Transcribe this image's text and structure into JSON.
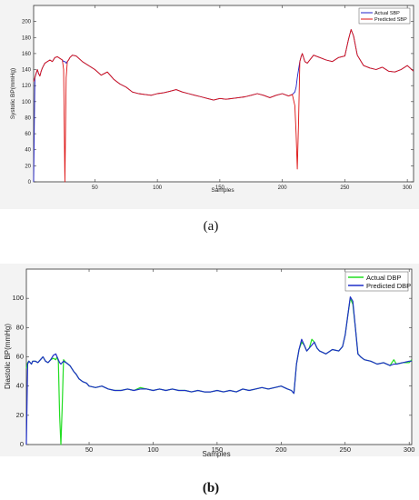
{
  "chart_data": [
    {
      "type": "line",
      "caption": "(a)",
      "xlabel": "Samples",
      "ylabel": "Systolic BP(mmHg)",
      "xlim": [
        1,
        305
      ],
      "ylim": [
        0,
        220
      ],
      "xticks": [
        50,
        100,
        150,
        200,
        250,
        300
      ],
      "yticks": [
        0,
        20,
        40,
        60,
        80,
        100,
        120,
        140,
        160,
        180,
        200
      ],
      "legend_position": "top-right",
      "grid": false,
      "series": [
        {
          "name": "Actual SBP",
          "color": "#2020c8",
          "x": [
            1,
            2,
            3,
            4,
            5,
            6,
            7,
            8,
            9,
            10,
            12,
            14,
            16,
            18,
            20,
            22,
            24,
            25,
            26,
            27,
            28,
            29,
            30,
            32,
            35,
            40,
            45,
            50,
            55,
            60,
            65,
            70,
            75,
            80,
            85,
            90,
            95,
            100,
            105,
            110,
            115,
            120,
            125,
            130,
            135,
            140,
            145,
            150,
            155,
            160,
            165,
            170,
            175,
            180,
            185,
            190,
            195,
            200,
            205,
            208,
            210,
            211,
            212,
            213,
            214,
            215,
            216,
            218,
            220,
            225,
            230,
            235,
            240,
            245,
            250,
            253,
            255,
            257,
            260,
            265,
            270,
            275,
            280,
            285,
            290,
            295,
            300,
            305
          ],
          "y": [
            0,
            130,
            135,
            140,
            135,
            132,
            138,
            142,
            145,
            148,
            150,
            152,
            150,
            155,
            156,
            154,
            152,
            150,
            150,
            148,
            150,
            152,
            155,
            158,
            157,
            150,
            145,
            140,
            133,
            137,
            128,
            122,
            118,
            112,
            110,
            109,
            108,
            110,
            111,
            113,
            115,
            112,
            110,
            108,
            106,
            104,
            102,
            104,
            103,
            104,
            105,
            106,
            108,
            110,
            108,
            105,
            108,
            110,
            107,
            109,
            112,
            118,
            130,
            140,
            150,
            156,
            160,
            150,
            148,
            158,
            155,
            152,
            150,
            155,
            157,
            178,
            190,
            182,
            158,
            145,
            142,
            140,
            143,
            138,
            137,
            140,
            145,
            138
          ]
        },
        {
          "name": "Predicted SBP",
          "color": "#dd1111",
          "x": [
            1,
            2,
            3,
            4,
            5,
            6,
            7,
            8,
            9,
            10,
            12,
            14,
            16,
            18,
            20,
            22,
            24,
            25,
            26,
            27,
            28,
            29,
            30,
            32,
            35,
            40,
            45,
            50,
            55,
            60,
            65,
            70,
            75,
            80,
            85,
            90,
            95,
            100,
            105,
            110,
            115,
            120,
            125,
            130,
            135,
            140,
            145,
            150,
            155,
            160,
            165,
            170,
            175,
            180,
            185,
            190,
            195,
            200,
            205,
            208,
            210,
            211,
            212,
            213,
            214,
            215,
            216,
            218,
            220,
            225,
            230,
            235,
            240,
            245,
            250,
            253,
            255,
            257,
            260,
            265,
            270,
            275,
            280,
            285,
            290,
            295,
            300,
            305
          ],
          "y": [
            125,
            130,
            136,
            140,
            135,
            132,
            138,
            142,
            145,
            148,
            150,
            152,
            150,
            155,
            156,
            154,
            152,
            140,
            0,
            130,
            150,
            152,
            155,
            158,
            157,
            150,
            145,
            140,
            133,
            137,
            128,
            122,
            118,
            112,
            110,
            109,
            108,
            110,
            111,
            113,
            115,
            112,
            110,
            108,
            106,
            104,
            102,
            104,
            103,
            104,
            105,
            106,
            108,
            110,
            108,
            105,
            108,
            110,
            107,
            109,
            95,
            60,
            16,
            75,
            150,
            156,
            160,
            150,
            148,
            158,
            155,
            152,
            150,
            155,
            157,
            178,
            190,
            182,
            158,
            145,
            142,
            140,
            143,
            138,
            137,
            140,
            145,
            138
          ]
        }
      ]
    },
    {
      "type": "line",
      "caption": "(b)",
      "xlabel": "Samples",
      "ylabel": "Diastolic BP(mmHg)",
      "xlim": [
        1,
        302
      ],
      "ylim": [
        0,
        120
      ],
      "xticks": [
        50,
        100,
        150,
        200,
        250,
        300
      ],
      "yticks": [
        0,
        20,
        40,
        60,
        80,
        100
      ],
      "legend_position": "top-right",
      "grid": false,
      "series": [
        {
          "name": "Actual DBP",
          "color": "#22dd22",
          "x": [
            1,
            2,
            3,
            4,
            5,
            6,
            8,
            10,
            12,
            14,
            16,
            18,
            20,
            22,
            24,
            25,
            26,
            27,
            28,
            29,
            30,
            32,
            35,
            38,
            40,
            42,
            45,
            48,
            50,
            55,
            60,
            65,
            70,
            75,
            80,
            85,
            90,
            95,
            100,
            105,
            110,
            115,
            120,
            125,
            130,
            135,
            140,
            145,
            150,
            155,
            160,
            165,
            170,
            175,
            180,
            185,
            190,
            195,
            200,
            205,
            208,
            210,
            212,
            214,
            216,
            218,
            220,
            222,
            224,
            226,
            228,
            230,
            235,
            240,
            245,
            248,
            250,
            252,
            254,
            256,
            258,
            260,
            262,
            265,
            270,
            275,
            280,
            285,
            288,
            290,
            295,
            300,
            302
          ],
          "y": [
            52,
            56,
            57,
            56,
            55,
            57,
            57,
            56,
            58,
            60,
            57,
            56,
            58,
            59,
            58,
            60,
            57,
            20,
            0,
            25,
            58,
            56,
            54,
            50,
            48,
            45,
            43,
            42,
            40,
            39,
            40,
            38,
            37,
            37,
            38,
            37,
            39,
            38,
            37,
            38,
            37,
            38,
            37,
            37,
            36,
            37,
            36,
            36,
            37,
            36,
            37,
            36,
            38,
            37,
            38,
            39,
            38,
            39,
            40,
            38,
            37,
            35,
            55,
            65,
            70,
            68,
            64,
            66,
            72,
            70,
            66,
            64,
            62,
            65,
            64,
            67,
            75,
            88,
            100,
            96,
            80,
            62,
            60,
            58,
            57,
            55,
            56,
            54,
            58,
            55,
            56,
            56,
            58
          ]
        },
        {
          "name": "Predicted DBP",
          "color": "#1f2fc8",
          "x": [
            1,
            2,
            3,
            4,
            5,
            6,
            8,
            10,
            12,
            14,
            16,
            18,
            20,
            22,
            24,
            25,
            26,
            27,
            28,
            29,
            30,
            32,
            35,
            38,
            40,
            42,
            45,
            48,
            50,
            55,
            60,
            65,
            70,
            75,
            80,
            85,
            90,
            95,
            100,
            105,
            110,
            115,
            120,
            125,
            130,
            135,
            140,
            145,
            150,
            155,
            160,
            165,
            170,
            175,
            180,
            185,
            190,
            195,
            200,
            205,
            208,
            210,
            212,
            214,
            216,
            218,
            220,
            222,
            224,
            226,
            228,
            230,
            235,
            240,
            245,
            248,
            250,
            252,
            254,
            256,
            258,
            260,
            262,
            265,
            270,
            275,
            280,
            285,
            288,
            290,
            295,
            300,
            302
          ],
          "y": [
            0,
            55,
            57,
            56,
            55,
            57,
            57,
            56,
            58,
            60,
            57,
            56,
            58,
            61,
            62,
            60,
            58,
            56,
            55,
            56,
            57,
            56,
            54,
            50,
            48,
            45,
            43,
            42,
            40,
            39,
            40,
            38,
            37,
            37,
            38,
            37,
            38,
            38,
            37,
            38,
            37,
            38,
            37,
            37,
            36,
            37,
            36,
            36,
            37,
            36,
            37,
            36,
            38,
            37,
            38,
            39,
            38,
            39,
            40,
            38,
            37,
            35,
            55,
            65,
            72,
            68,
            64,
            66,
            68,
            70,
            66,
            64,
            62,
            65,
            64,
            67,
            75,
            88,
            101,
            98,
            80,
            62,
            60,
            58,
            57,
            55,
            56,
            54,
            55,
            55,
            56,
            57,
            57
          ]
        }
      ]
    }
  ]
}
